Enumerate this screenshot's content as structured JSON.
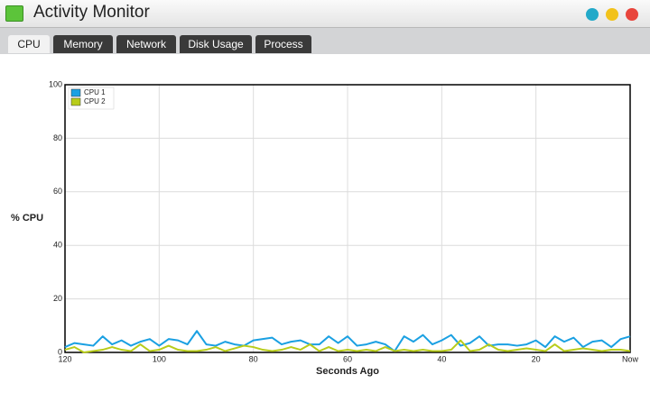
{
  "window": {
    "title": "Activity Monitor",
    "tabs": [
      "CPU",
      "Memory",
      "Network",
      "Disk Usage",
      "Process"
    ]
  },
  "chart_data": {
    "type": "line",
    "y_label": "% CPU",
    "x_label": "Seconds Ago",
    "x": [
      120,
      118,
      116,
      114,
      112,
      110,
      108,
      106,
      104,
      102,
      100,
      98,
      96,
      94,
      92,
      90,
      88,
      86,
      84,
      82,
      80,
      78,
      76,
      74,
      72,
      70,
      68,
      66,
      64,
      62,
      60,
      58,
      56,
      54,
      52,
      50,
      48,
      46,
      44,
      42,
      40,
      38,
      36,
      34,
      32,
      30,
      28,
      26,
      24,
      22,
      20,
      18,
      16,
      14,
      12,
      10,
      8,
      6,
      4,
      2,
      0
    ],
    "series": [
      {
        "name": "CPU 1",
        "color": "#1aa0e2",
        "values": [
          2,
          3.5,
          3,
          2.5,
          6,
          3,
          4.5,
          2.5,
          4,
          5,
          2.5,
          5,
          4.5,
          3,
          8,
          3,
          2.5,
          4,
          3,
          2.5,
          4.5,
          5,
          5.5,
          3,
          4,
          4.5,
          3,
          3,
          6,
          3.5,
          6,
          2.5,
          3,
          4,
          3,
          0.5,
          6,
          4,
          6.5,
          3,
          4.5,
          6.5,
          2.5,
          3.5,
          6,
          2.5,
          3,
          3,
          2.5,
          3,
          4.5,
          2,
          6,
          4,
          5.5,
          2,
          4,
          4.5,
          2,
          5,
          6
        ]
      },
      {
        "name": "CPU 2",
        "color": "#b8cc1a",
        "values": [
          1,
          2,
          0,
          0.5,
          1,
          2,
          1,
          0.5,
          3,
          0.5,
          1,
          2.5,
          1,
          0.5,
          0.5,
          1,
          2,
          0.5,
          1.5,
          2.5,
          2,
          1,
          0.5,
          1,
          2,
          1,
          3,
          0.5,
          2,
          0.5,
          1,
          0.5,
          1,
          0.5,
          2,
          0.5,
          1,
          0.5,
          1,
          0.5,
          0.5,
          1,
          4.5,
          0.5,
          1,
          3,
          1,
          0.5,
          1,
          1.5,
          1,
          0.5,
          3,
          0.5,
          1,
          1.5,
          1,
          0.5,
          1,
          1,
          0.5
        ]
      }
    ],
    "xlim": [
      120,
      0
    ],
    "ylim": [
      0,
      100
    ],
    "xticks": [
      120,
      100,
      80,
      60,
      40,
      20,
      {
        "value": 0,
        "label": "Now"
      }
    ],
    "yticks": [
      0,
      20,
      40,
      60,
      80,
      100
    ],
    "grid": true,
    "legend": "upper-left"
  }
}
